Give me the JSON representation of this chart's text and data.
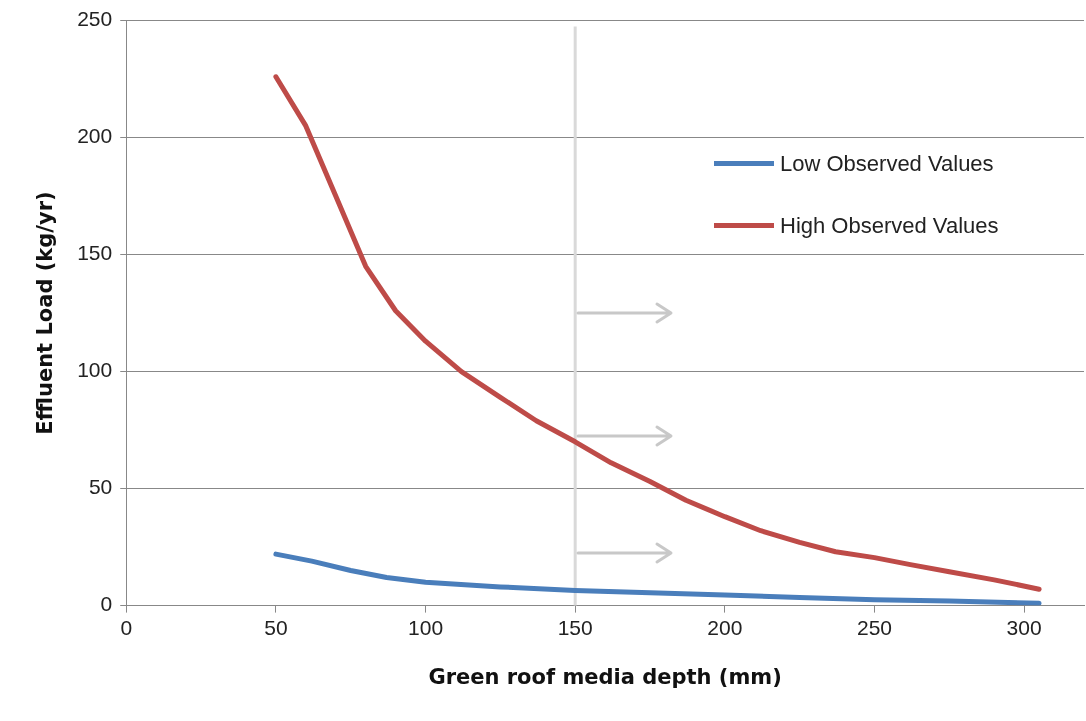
{
  "chart_data": {
    "type": "line",
    "xlabel": "Green roof media depth (mm)",
    "ylabel": "Effluent Load (kg/yr)",
    "xlim": [
      0,
      320
    ],
    "xticks": [
      0,
      50,
      100,
      150,
      200,
      250,
      300
    ],
    "ylim": [
      0,
      250
    ],
    "yticks": [
      0,
      50,
      100,
      150,
      200,
      250
    ],
    "grid": "y",
    "legend": "right",
    "marker": "none",
    "line_style": "solid",
    "ref_lines": [
      {
        "axis": "x",
        "value": 150,
        "color": "#d9d9d9"
      }
    ],
    "series": [
      {
        "name": "Low Observed Values",
        "color": "#4a7ebb",
        "x": [
          50,
          62,
          75,
          87,
          100,
          125,
          150,
          175,
          200,
          225,
          250,
          275,
          305
        ],
        "values": [
          22,
          19,
          15,
          12,
          10,
          8,
          6.5,
          5.5,
          4.5,
          3.5,
          2.5,
          2,
          1
        ]
      },
      {
        "name": "High Observed Values",
        "color": "#be4b48",
        "x": [
          50,
          60,
          70,
          80,
          90,
          100,
          112,
          125,
          137,
          150,
          162,
          175,
          187,
          200,
          212,
          225,
          237,
          250,
          262,
          275,
          290,
          305
        ],
        "values": [
          226,
          205,
          175,
          145,
          126,
          113,
          100,
          89,
          79,
          70,
          61,
          53,
          45,
          38,
          32,
          27,
          23,
          20.5,
          17.5,
          14.5,
          11,
          7
        ]
      }
    ]
  }
}
